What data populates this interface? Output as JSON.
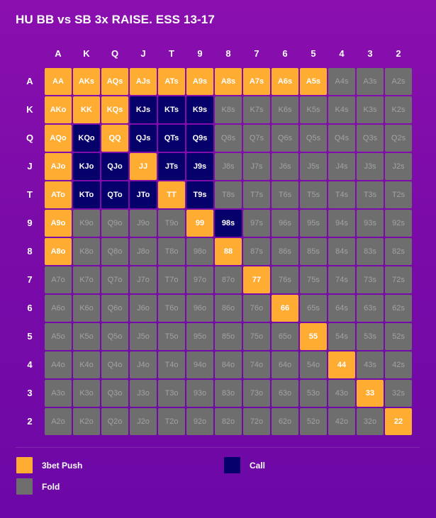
{
  "title": "HU BB vs SB 3x RAISE. ESS 13-17",
  "colors": {
    "push": "#ffac33",
    "call": "#06006b",
    "fold": "#6e6e6e"
  },
  "chart_data": {
    "type": "heatmap",
    "title": "HU BB vs SB 3x RAISE. ESS 13-17",
    "columns": [
      "A",
      "K",
      "Q",
      "J",
      "T",
      "9",
      "8",
      "7",
      "6",
      "5",
      "4",
      "3",
      "2"
    ],
    "rows": [
      "A",
      "K",
      "Q",
      "J",
      "T",
      "9",
      "8",
      "7",
      "6",
      "5",
      "4",
      "3",
      "2"
    ],
    "cells": [
      [
        "AA",
        "AKs",
        "AQs",
        "AJs",
        "ATs",
        "A9s",
        "A8s",
        "A7s",
        "A6s",
        "A5s",
        "A4s",
        "A3s",
        "A2s"
      ],
      [
        "AKo",
        "KK",
        "KQs",
        "KJs",
        "KTs",
        "K9s",
        "K8s",
        "K7s",
        "K6s",
        "K5s",
        "K4s",
        "K3s",
        "K2s"
      ],
      [
        "AQo",
        "KQo",
        "QQ",
        "QJs",
        "QTs",
        "Q9s",
        "Q8s",
        "Q7s",
        "Q6s",
        "Q5s",
        "Q4s",
        "Q3s",
        "Q2s"
      ],
      [
        "AJo",
        "KJo",
        "QJo",
        "JJ",
        "JTs",
        "J9s",
        "J8s",
        "J7s",
        "J6s",
        "J5s",
        "J4s",
        "J3s",
        "J2s"
      ],
      [
        "ATo",
        "KTo",
        "QTo",
        "JTo",
        "TT",
        "T9s",
        "T8s",
        "T7s",
        "T6s",
        "T5s",
        "T4s",
        "T3s",
        "T2s"
      ],
      [
        "A9o",
        "K9o",
        "Q9o",
        "J9o",
        "T9o",
        "99",
        "98s",
        "97s",
        "96s",
        "95s",
        "94s",
        "93s",
        "92s"
      ],
      [
        "A8o",
        "K8o",
        "Q8o",
        "J8o",
        "T8o",
        "98o",
        "88",
        "87s",
        "86s",
        "85s",
        "84s",
        "83s",
        "82s"
      ],
      [
        "A7o",
        "K7o",
        "Q7o",
        "J7o",
        "T7o",
        "97o",
        "87o",
        "77",
        "76s",
        "75s",
        "74s",
        "73s",
        "72s"
      ],
      [
        "A6o",
        "K6o",
        "Q6o",
        "J6o",
        "T6o",
        "96o",
        "86o",
        "76o",
        "66",
        "65s",
        "64s",
        "63s",
        "62s"
      ],
      [
        "A5o",
        "K5o",
        "Q5o",
        "J5o",
        "T5o",
        "95o",
        "85o",
        "75o",
        "65o",
        "55",
        "54s",
        "53s",
        "52s"
      ],
      [
        "A4o",
        "K4o",
        "Q4o",
        "J4o",
        "T4o",
        "94o",
        "84o",
        "74o",
        "64o",
        "54o",
        "44",
        "43s",
        "42s"
      ],
      [
        "A3o",
        "K3o",
        "Q3o",
        "J3o",
        "T3o",
        "93o",
        "83o",
        "73o",
        "63o",
        "53o",
        "43o",
        "33",
        "32s"
      ],
      [
        "A2o",
        "K2o",
        "Q2o",
        "J2o",
        "T2o",
        "92o",
        "82o",
        "72o",
        "62o",
        "52o",
        "42o",
        "32o",
        "22"
      ]
    ],
    "actions": [
      [
        "push",
        "push",
        "push",
        "push",
        "push",
        "push",
        "push",
        "push",
        "push",
        "push",
        "fold",
        "fold",
        "fold"
      ],
      [
        "push",
        "push",
        "push",
        "call",
        "call",
        "call",
        "fold",
        "fold",
        "fold",
        "fold",
        "fold",
        "fold",
        "fold"
      ],
      [
        "push",
        "call",
        "push",
        "call",
        "call",
        "call",
        "fold",
        "fold",
        "fold",
        "fold",
        "fold",
        "fold",
        "fold"
      ],
      [
        "push",
        "call",
        "call",
        "push",
        "call",
        "call",
        "fold",
        "fold",
        "fold",
        "fold",
        "fold",
        "fold",
        "fold"
      ],
      [
        "push",
        "call",
        "call",
        "call",
        "push",
        "call",
        "fold",
        "fold",
        "fold",
        "fold",
        "fold",
        "fold",
        "fold"
      ],
      [
        "push",
        "fold",
        "fold",
        "fold",
        "fold",
        "push",
        "call",
        "fold",
        "fold",
        "fold",
        "fold",
        "fold",
        "fold"
      ],
      [
        "push",
        "fold",
        "fold",
        "fold",
        "fold",
        "fold",
        "push",
        "fold",
        "fold",
        "fold",
        "fold",
        "fold",
        "fold"
      ],
      [
        "fold",
        "fold",
        "fold",
        "fold",
        "fold",
        "fold",
        "fold",
        "push",
        "fold",
        "fold",
        "fold",
        "fold",
        "fold"
      ],
      [
        "fold",
        "fold",
        "fold",
        "fold",
        "fold",
        "fold",
        "fold",
        "fold",
        "push",
        "fold",
        "fold",
        "fold",
        "fold"
      ],
      [
        "fold",
        "fold",
        "fold",
        "fold",
        "fold",
        "fold",
        "fold",
        "fold",
        "fold",
        "push",
        "fold",
        "fold",
        "fold"
      ],
      [
        "fold",
        "fold",
        "fold",
        "fold",
        "fold",
        "fold",
        "fold",
        "fold",
        "fold",
        "fold",
        "push",
        "fold",
        "fold"
      ],
      [
        "fold",
        "fold",
        "fold",
        "fold",
        "fold",
        "fold",
        "fold",
        "fold",
        "fold",
        "fold",
        "fold",
        "push",
        "fold"
      ],
      [
        "fold",
        "fold",
        "fold",
        "fold",
        "fold",
        "fold",
        "fold",
        "fold",
        "fold",
        "fold",
        "fold",
        "fold",
        "push"
      ]
    ],
    "legend": [
      {
        "key": "push",
        "label": "3bet Push"
      },
      {
        "key": "call",
        "label": "Call"
      },
      {
        "key": "fold",
        "label": "Fold"
      }
    ]
  }
}
